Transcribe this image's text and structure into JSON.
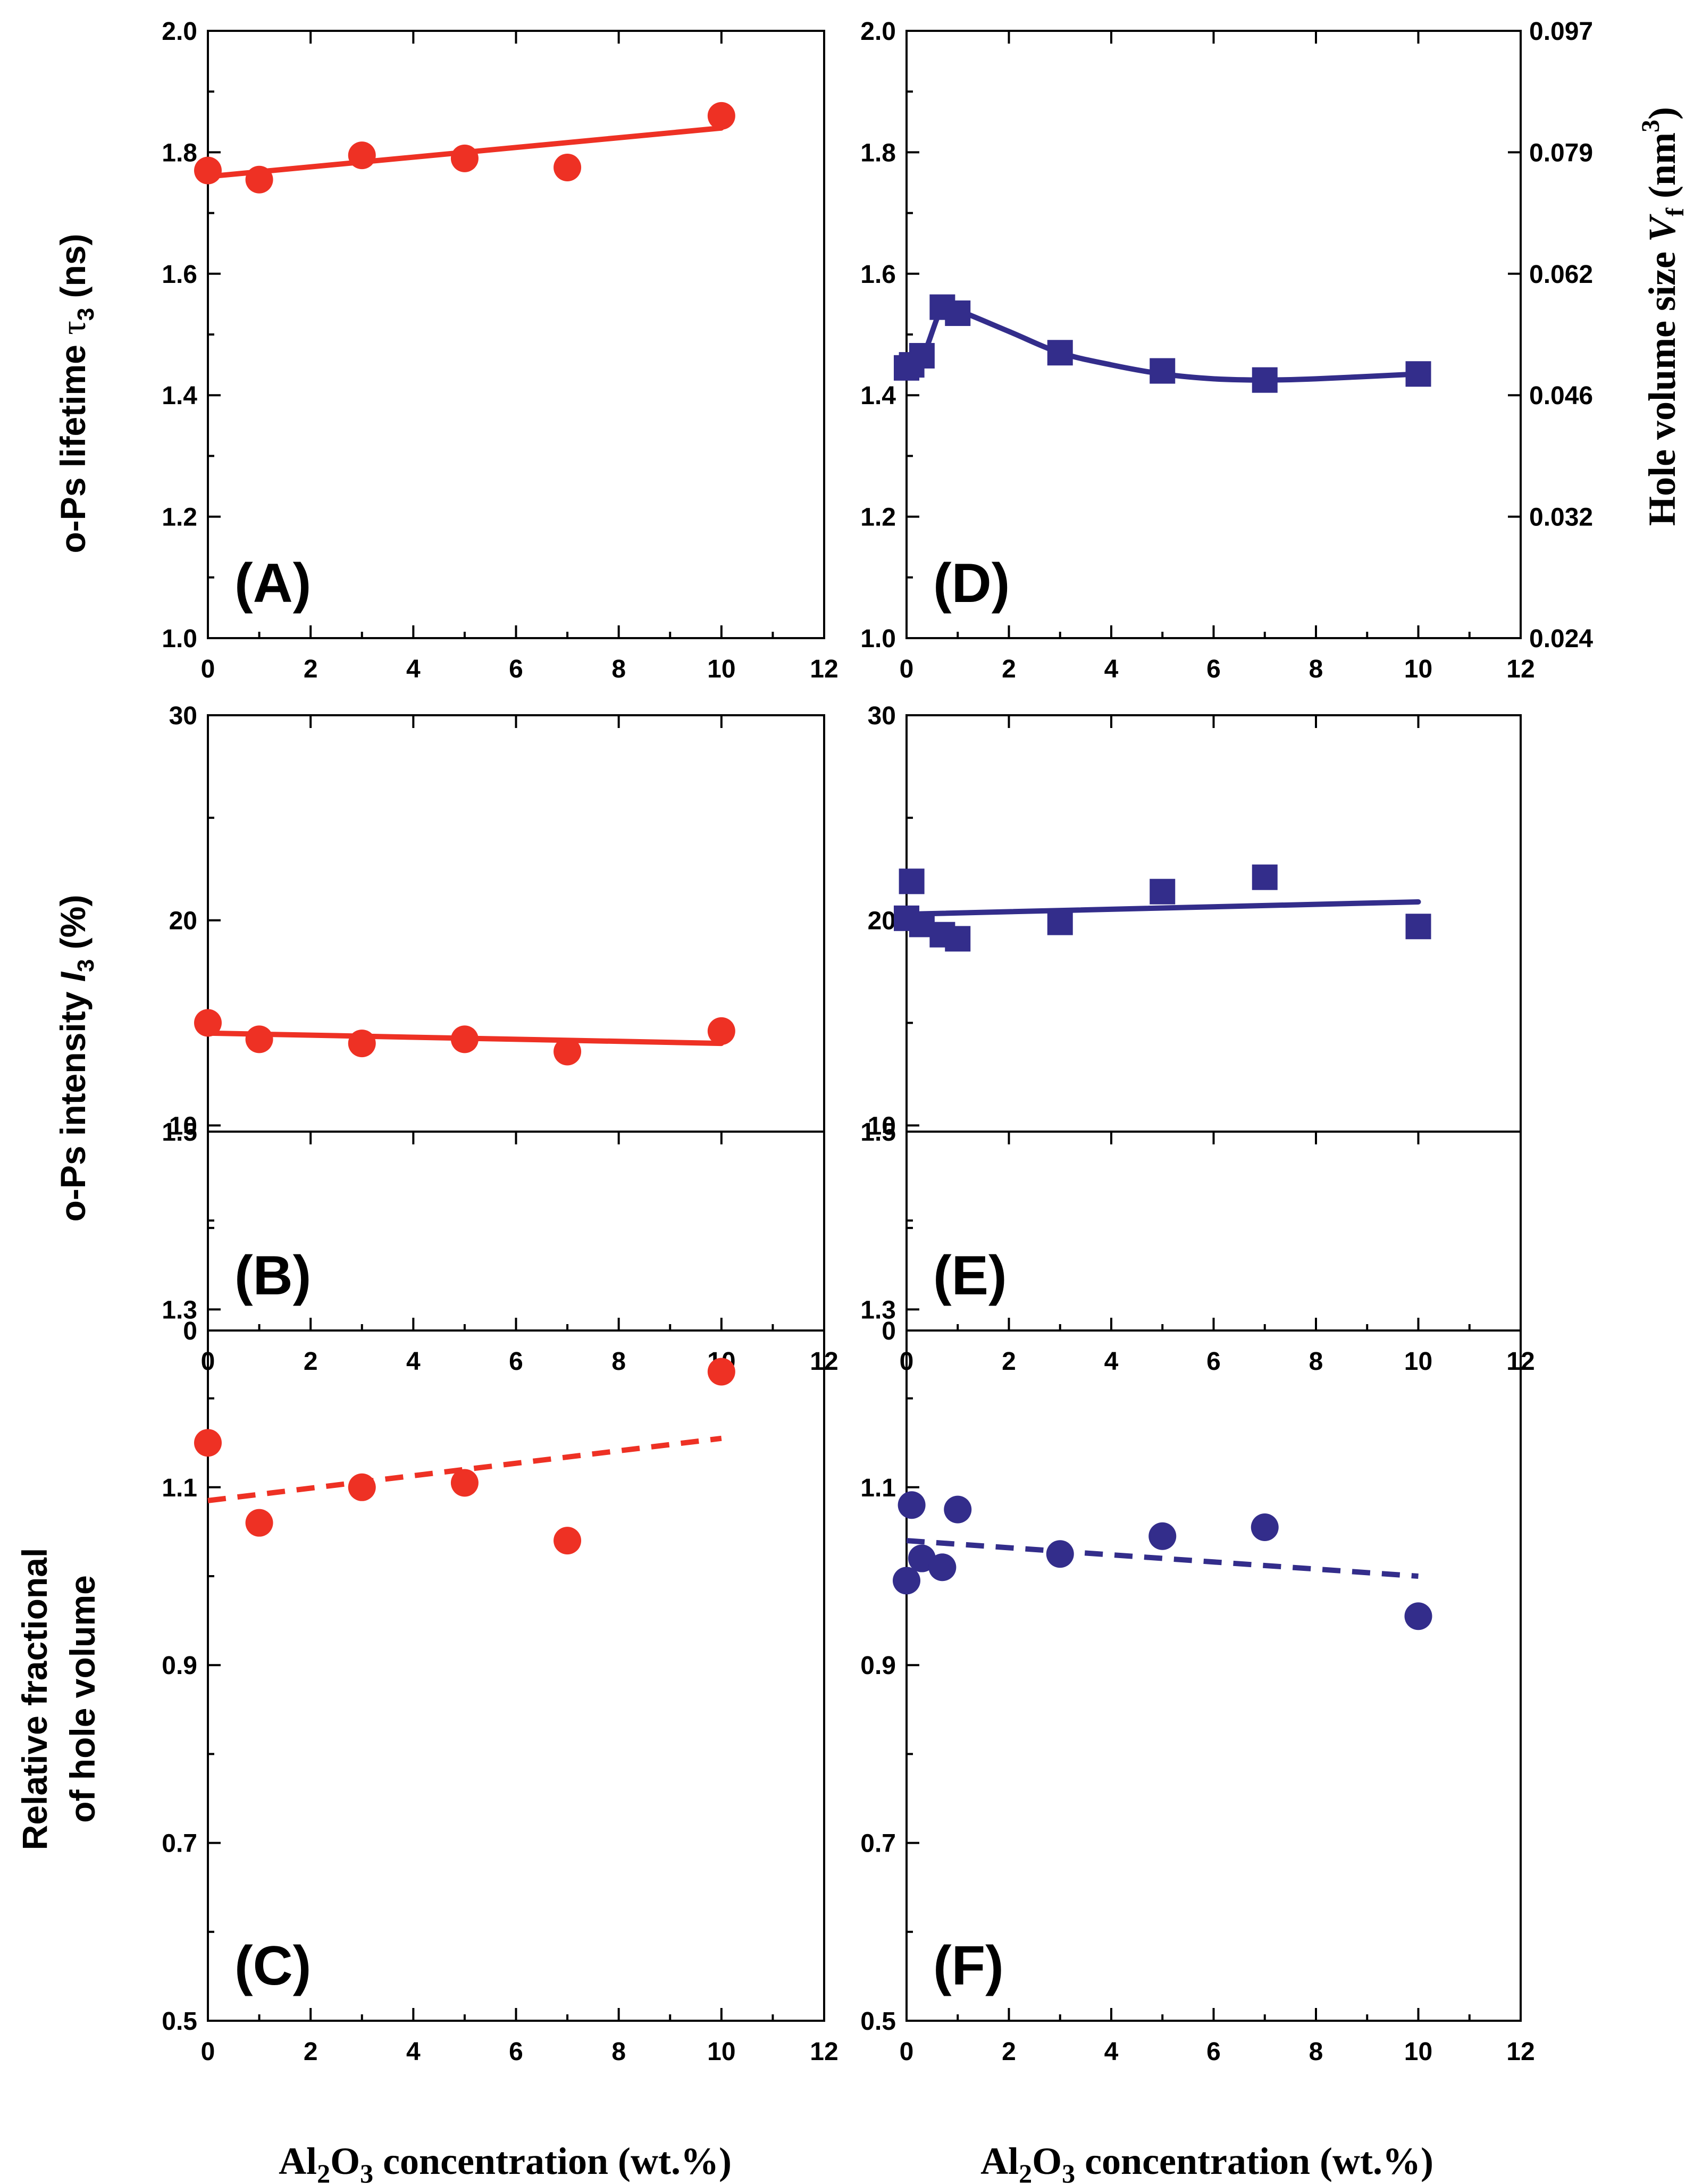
{
  "figure": {
    "x_axis_label": "Al2O3 concentration (wt.%)",
    "x_axis_label_parts": {
      "pre": "Al",
      "sub1": "2",
      "mid": "O",
      "sub2": "3",
      "post": " concentration (wt.%)"
    },
    "colors": {
      "red": "#ee3124",
      "blue": "#332d8b",
      "axis": "#000000"
    }
  },
  "row_labels": {
    "lifetime": {
      "pre": "o-Ps lifetime ",
      "sym": "τ",
      "sub": "3",
      "post": " (ns)"
    },
    "intensity": {
      "pre": "o-Ps intensity ",
      "sym": "I",
      "sub": "3",
      "post": " (%)"
    },
    "fraction_line1": "Relative fractional",
    "fraction_line2": "of hole volume",
    "hole_volume": {
      "pre": "Hole volume size ",
      "sym": "V",
      "sub": "f",
      "post1": " (nm",
      "sup": "3",
      "post2": ")"
    }
  },
  "chart_data": [
    {
      "id": "A",
      "panel_label": "(A)",
      "type": "scatter",
      "series": [
        {
          "name": "o-Ps lifetime",
          "color": "#ee3124",
          "marker": "circle",
          "x": [
            0,
            1,
            3,
            5,
            7,
            10
          ],
          "y": [
            1.77,
            1.755,
            1.795,
            1.79,
            1.775,
            1.86
          ]
        }
      ],
      "fit": {
        "kind": "line",
        "style": "solid",
        "x": [
          0,
          10
        ],
        "y": [
          1.76,
          1.84
        ]
      },
      "xlim": [
        0,
        12
      ],
      "ylim": [
        1.0,
        2.0
      ],
      "xticks": [
        0,
        2,
        4,
        6,
        8,
        10,
        12
      ],
      "yticks": [
        1.0,
        1.2,
        1.4,
        1.6,
        1.8,
        2.0
      ],
      "ytick_labels": [
        "1.0",
        "1.2",
        "1.4",
        "1.6",
        "1.8",
        "2.0"
      ]
    },
    {
      "id": "D",
      "panel_label": "(D)",
      "type": "scatter",
      "series": [
        {
          "name": "o-Ps lifetime",
          "color": "#332d8b",
          "marker": "square",
          "x": [
            0,
            0.1,
            0.3,
            0.7,
            1,
            3,
            5,
            7,
            10
          ],
          "y": [
            1.445,
            1.45,
            1.465,
            1.545,
            1.535,
            1.47,
            1.44,
            1.425,
            1.435
          ]
        }
      ],
      "fit": {
        "kind": "curve",
        "style": "solid",
        "x": [
          0,
          0.3,
          0.7,
          1,
          2,
          3,
          4,
          5,
          6,
          7,
          8,
          10
        ],
        "y": [
          1.44,
          1.46,
          1.545,
          1.54,
          1.505,
          1.47,
          1.45,
          1.435,
          1.427,
          1.425,
          1.427,
          1.435
        ]
      },
      "xlim": [
        0,
        12
      ],
      "ylim": [
        1.0,
        2.0
      ],
      "xticks": [
        0,
        2,
        4,
        6,
        8,
        10,
        12
      ],
      "yticks": [
        1.0,
        1.2,
        1.4,
        1.6,
        1.8,
        2.0
      ],
      "ytick_labels": [
        "1.0",
        "1.2",
        "1.4",
        "1.6",
        "1.8",
        "2.0"
      ],
      "right_axis": {
        "ticks_at": [
          1.0,
          1.2,
          1.4,
          1.6,
          1.8,
          2.0
        ],
        "tick_labels": [
          "0.024",
          "0.032",
          "0.046",
          "0.062",
          "0.079",
          "0.097"
        ]
      }
    },
    {
      "id": "B",
      "panel_label": "(B)",
      "type": "scatter",
      "series": [
        {
          "name": "o-Ps intensity",
          "color": "#ee3124",
          "marker": "circle",
          "x": [
            0,
            1,
            3,
            5,
            7,
            10
          ],
          "y": [
            15.0,
            14.2,
            14.0,
            14.2,
            13.6,
            14.6
          ]
        }
      ],
      "fit": {
        "kind": "line",
        "style": "solid",
        "x": [
          0,
          10
        ],
        "y": [
          14.5,
          14.0
        ]
      },
      "xlim": [
        0,
        12
      ],
      "ylim": [
        0,
        30
      ],
      "xticks": [
        0,
        2,
        4,
        6,
        8,
        10,
        12
      ],
      "yticks": [
        0,
        10,
        20,
        30
      ],
      "ytick_labels": [
        "0",
        "10",
        "20",
        "30"
      ]
    },
    {
      "id": "E",
      "panel_label": "(E)",
      "type": "scatter",
      "series": [
        {
          "name": "o-Ps intensity",
          "color": "#332d8b",
          "marker": "square",
          "x": [
            0,
            0.1,
            0.3,
            0.7,
            1,
            3,
            5,
            7,
            10
          ],
          "y": [
            20.1,
            21.9,
            19.8,
            19.3,
            19.1,
            19.9,
            21.4,
            22.1,
            19.7
          ]
        }
      ],
      "fit": {
        "kind": "line",
        "style": "solid",
        "x": [
          0,
          10
        ],
        "y": [
          20.3,
          20.9
        ]
      },
      "xlim": [
        0,
        12
      ],
      "ylim": [
        0,
        30
      ],
      "xticks": [
        0,
        2,
        4,
        6,
        8,
        10,
        12
      ],
      "yticks": [
        0,
        10,
        20,
        30
      ],
      "ytick_labels": [
        "0",
        "10",
        "20",
        "30"
      ]
    },
    {
      "id": "C",
      "panel_label": "(C)",
      "type": "scatter",
      "series": [
        {
          "name": "relative fractional hole volume",
          "color": "#ee3124",
          "marker": "circle",
          "x": [
            0,
            1,
            3,
            5,
            7,
            10
          ],
          "y": [
            1.15,
            1.06,
            1.1,
            1.105,
            1.04,
            1.23
          ]
        }
      ],
      "fit": {
        "kind": "line",
        "style": "dashed",
        "x": [
          0,
          10
        ],
        "y": [
          1.085,
          1.155
        ]
      },
      "xlim": [
        0,
        12
      ],
      "ylim": [
        0.5,
        1.5
      ],
      "xticks": [
        0,
        2,
        4,
        6,
        8,
        10,
        12
      ],
      "yticks": [
        0.5,
        0.7,
        0.9,
        1.1,
        1.3,
        1.5
      ],
      "ytick_labels": [
        "0.5",
        "0.7",
        "0.9",
        "1.1",
        "1.3",
        "1.5"
      ]
    },
    {
      "id": "F",
      "panel_label": "(F)",
      "type": "scatter",
      "series": [
        {
          "name": "relative fractional hole volume",
          "color": "#332d8b",
          "marker": "circle",
          "x": [
            0,
            0.1,
            0.3,
            0.7,
            1,
            3,
            5,
            7,
            10
          ],
          "y": [
            0.995,
            1.08,
            1.02,
            1.01,
            1.075,
            1.025,
            1.045,
            1.055,
            0.955
          ]
        }
      ],
      "fit": {
        "kind": "line",
        "style": "dashed",
        "x": [
          0,
          10
        ],
        "y": [
          1.04,
          1.0
        ]
      },
      "xlim": [
        0,
        12
      ],
      "ylim": [
        0.5,
        1.5
      ],
      "xticks": [
        0,
        2,
        4,
        6,
        8,
        10,
        12
      ],
      "yticks": [
        0.5,
        0.7,
        0.9,
        1.1,
        1.3,
        1.5
      ],
      "ytick_labels": [
        "0.5",
        "0.7",
        "0.9",
        "1.1",
        "1.3",
        "1.5"
      ]
    }
  ]
}
